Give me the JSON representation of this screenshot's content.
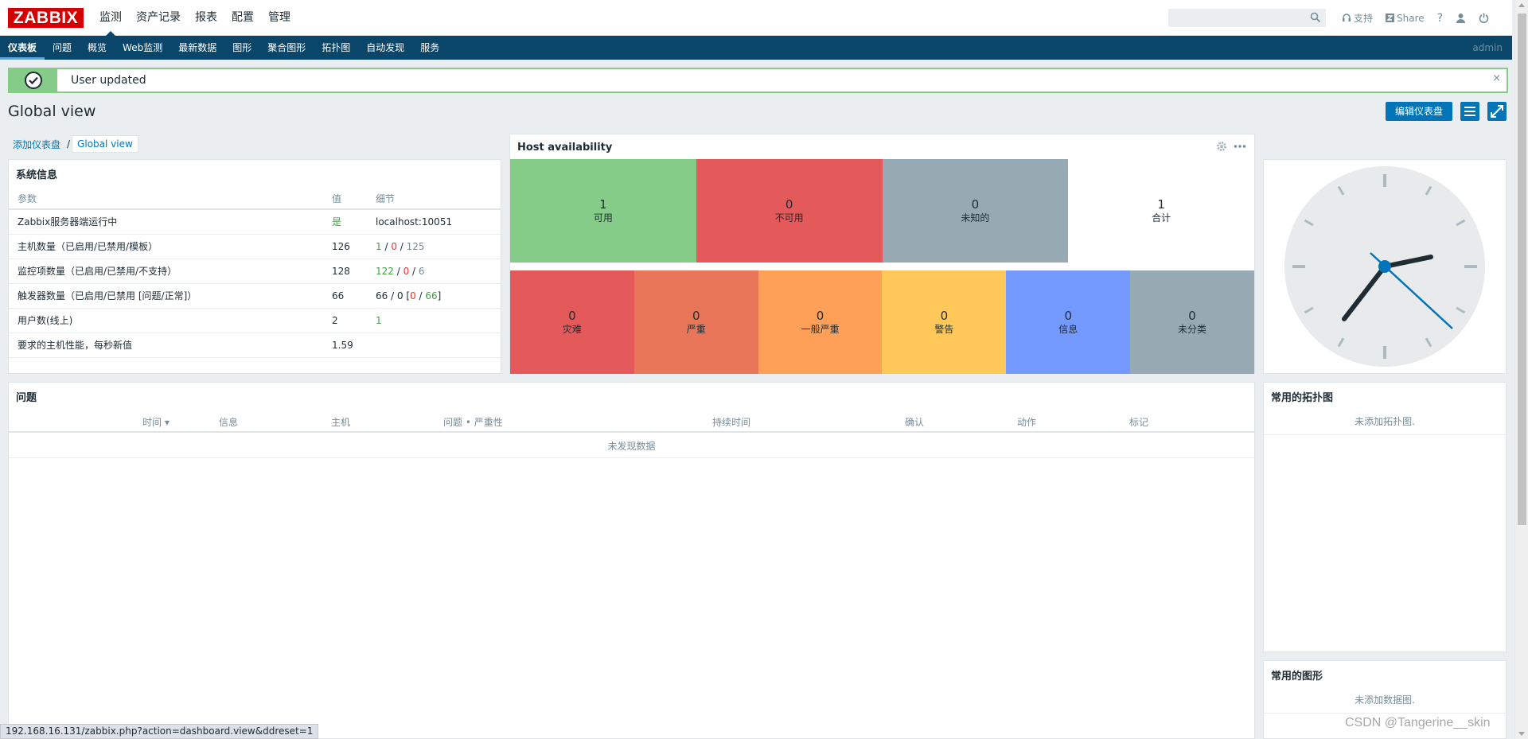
{
  "header": {
    "logo": "ZABBIX",
    "menu": [
      {
        "label": "监测",
        "selected": true
      },
      {
        "label": "资产记录",
        "selected": false
      },
      {
        "label": "报表",
        "selected": false
      },
      {
        "label": "配置",
        "selected": false
      },
      {
        "label": "管理",
        "selected": false
      }
    ],
    "search_value": "",
    "support_label": "支持",
    "share_label": "Share",
    "help_label": "?"
  },
  "submenu": {
    "items": [
      "仪表板",
      "问题",
      "概览",
      "Web监测",
      "最新数据",
      "图形",
      "聚合图形",
      "拓扑图",
      "自动发现",
      "服务"
    ],
    "user": "admin"
  },
  "message": {
    "text": "User updated",
    "close": "×"
  },
  "page": {
    "title": "Global view",
    "edit_button": "编辑仪表盘",
    "breadcrumb": {
      "parent": "添加仪表盘",
      "separator": "/",
      "current": "Global view"
    }
  },
  "system_info": {
    "title": "系统信息",
    "columns": [
      "参数",
      "值",
      "细节"
    ],
    "rows": [
      {
        "param": "Zabbix服务器端运行中",
        "value": "是",
        "detail": "localhost:10051"
      },
      {
        "param": "主机数量（已启用/已禁用/模板）",
        "value": "126",
        "d1": "1",
        "d2": "0",
        "d3": "125"
      },
      {
        "param": "监控项数量（已启用/已禁用/不支持）",
        "value": "128",
        "d1": "122",
        "d2": "0",
        "d3": "6"
      },
      {
        "param": "触发器数量（已启用/已禁用 [问题/正常]）",
        "value": "66",
        "d_prefix": "66 / 0 [",
        "d1": "0",
        "d_sep": " / ",
        "d2": "66",
        "d_suffix": "]"
      },
      {
        "param": "用户数(线上)",
        "value": "2",
        "detail": "1"
      },
      {
        "param": "要求的主机性能，每秒新值",
        "value": "1.59",
        "detail": ""
      }
    ]
  },
  "host_availability": {
    "title": "Host availability",
    "summary": [
      {
        "count": "1",
        "label": "可用",
        "color": "#86cc89"
      },
      {
        "count": "0",
        "label": "不可用",
        "color": "#e45959"
      },
      {
        "count": "0",
        "label": "未知的",
        "color": "#97aab3"
      },
      {
        "count": "1",
        "label": "合计",
        "color": "#ffffff"
      }
    ],
    "severity": [
      {
        "count": "0",
        "label": "灾难",
        "color": "#e45959"
      },
      {
        "count": "0",
        "label": "严重",
        "color": "#e97659"
      },
      {
        "count": "0",
        "label": "一般严重",
        "color": "#ffa059"
      },
      {
        "count": "0",
        "label": "警告",
        "color": "#ffc859"
      },
      {
        "count": "0",
        "label": "信息",
        "color": "#7499ff"
      },
      {
        "count": "0",
        "label": "未分类",
        "color": "#97aab3"
      }
    ]
  },
  "problems": {
    "title": "问题",
    "columns": [
      "时间 ▾",
      "信息",
      "主机",
      "问题 • 严重性",
      "持续时间",
      "确认",
      "动作",
      "标记"
    ],
    "empty": "未发现数据"
  },
  "favorite_maps": {
    "title": "常用的拓扑图",
    "empty": "未添加拓扑图."
  },
  "favorite_graphs": {
    "title": "常用的图形",
    "empty": "未添加数据图."
  },
  "status_url": "192.168.16.131/zabbix.php?action=dashboard.view&ddreset=1",
  "watermark": "CSDN @Tangerine__skin"
}
